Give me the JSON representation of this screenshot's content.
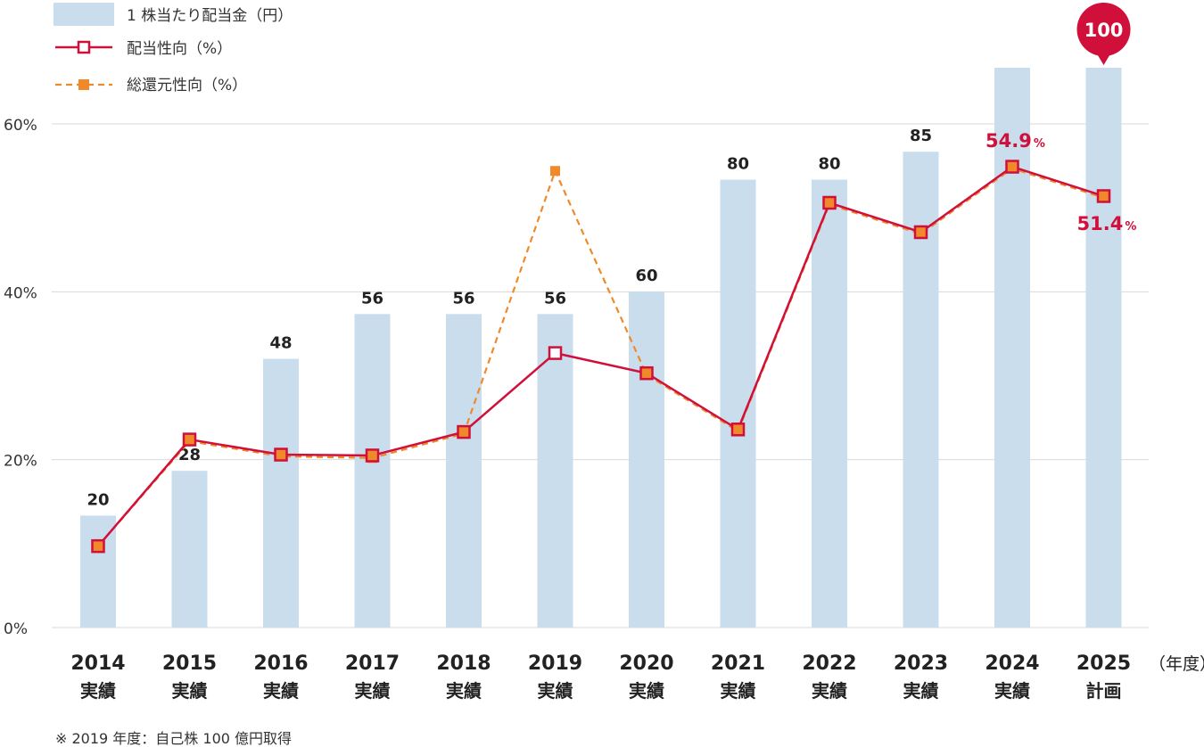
{
  "chart_data": {
    "type": "bar",
    "categories": [
      "2014",
      "2015",
      "2016",
      "2017",
      "2018",
      "2019",
      "2020",
      "2021",
      "2022",
      "2023",
      "2024",
      "2025"
    ],
    "category_sublabels": [
      "実績",
      "実績",
      "実績",
      "実績",
      "実績",
      "実績",
      "実績",
      "実績",
      "実績",
      "実績",
      "実績",
      "計画"
    ],
    "x_unit_label": "（年度）",
    "series": [
      {
        "name": "1 株当たり配当金（円）",
        "type": "bar",
        "axis": "dividend",
        "values": [
          20,
          28,
          48,
          56,
          56,
          56,
          60,
          80,
          80,
          85,
          100,
          100
        ],
        "data_labels": [
          "20",
          "28",
          "48",
          "56",
          "56",
          "56",
          "60",
          "80",
          "80",
          "85",
          "",
          ""
        ],
        "color": "#c9ddec"
      },
      {
        "name": "配当性向（%）",
        "type": "line",
        "axis": "percent",
        "values": [
          9.7,
          22.4,
          20.6,
          20.5,
          23.3,
          32.7,
          30.3,
          23.6,
          50.6,
          47.1,
          54.9,
          51.4
        ],
        "color": "#d0103a"
      },
      {
        "name": "総還元性向（%）",
        "type": "line",
        "axis": "percent",
        "dashed": true,
        "values": [
          9.7,
          22.2,
          20.4,
          20.2,
          23.1,
          54.4,
          30.1,
          23.4,
          50.4,
          46.9,
          54.7,
          51.2
        ],
        "color": "#f0892a"
      }
    ],
    "y_ticks": [
      "0%",
      "20%",
      "40%",
      "60%"
    ],
    "ylim": [
      0,
      60
    ],
    "dividend_scale_max": 100,
    "callouts": {
      "bubble_value": "100",
      "pct_2024": "54.9",
      "pct_2025": "51.4",
      "pct_symbol": "%"
    },
    "grid": true,
    "legend_position": "top-left",
    "footnote": "※ 2019 年度：自己株 100 億円取得"
  },
  "colors": {
    "bar": "#c9ddec",
    "payout_line": "#d0103a",
    "total_return_line": "#f0892a",
    "grid": "#d9d9d9",
    "accent": "#d0103a"
  }
}
